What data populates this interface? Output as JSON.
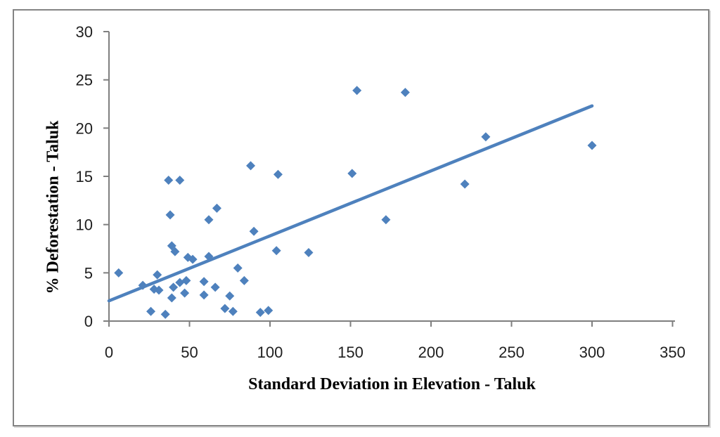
{
  "figure": {
    "background": "#ffffff",
    "border_color": "#848484"
  },
  "chart_data": {
    "type": "scatter",
    "title": "",
    "xlabel": "Standard Deviation in Elevation - Taluk",
    "ylabel": "% Deforestation - Taluk",
    "xlim": [
      0,
      350
    ],
    "ylim": [
      0,
      30
    ],
    "x_ticks": [
      0,
      50,
      100,
      150,
      200,
      250,
      300,
      350
    ],
    "y_ticks": [
      0,
      5,
      10,
      15,
      20,
      25,
      30
    ],
    "grid": false,
    "legend": false,
    "marker": "diamond",
    "marker_color": "#4e81bd",
    "axis_color": "#7f7f7f",
    "tick_label_color": "#1f1f1f",
    "points": [
      [
        6,
        5.0
      ],
      [
        21,
        3.7
      ],
      [
        26,
        1.0
      ],
      [
        28,
        3.3
      ],
      [
        30,
        4.8
      ],
      [
        31,
        3.2
      ],
      [
        35,
        0.7
      ],
      [
        37,
        14.6
      ],
      [
        38,
        11.0
      ],
      [
        39,
        2.4
      ],
      [
        39,
        7.8
      ],
      [
        40,
        3.5
      ],
      [
        41,
        7.2
      ],
      [
        44,
        4.0
      ],
      [
        44,
        14.6
      ],
      [
        47,
        2.9
      ],
      [
        48,
        4.2
      ],
      [
        49,
        6.6
      ],
      [
        52,
        6.4
      ],
      [
        59,
        2.7
      ],
      [
        59,
        4.1
      ],
      [
        62,
        6.7
      ],
      [
        62,
        10.5
      ],
      [
        66,
        3.5
      ],
      [
        67,
        11.7
      ],
      [
        72,
        1.3
      ],
      [
        75,
        2.6
      ],
      [
        77,
        1.0
      ],
      [
        80,
        5.5
      ],
      [
        84,
        4.2
      ],
      [
        88,
        16.1
      ],
      [
        90,
        9.3
      ],
      [
        94,
        0.9
      ],
      [
        99,
        1.1
      ],
      [
        104,
        7.3
      ],
      [
        105,
        15.2
      ],
      [
        124,
        7.1
      ],
      [
        151,
        15.3
      ],
      [
        154,
        23.9
      ],
      [
        172,
        10.5
      ],
      [
        184,
        23.7
      ],
      [
        221,
        14.2
      ],
      [
        234,
        19.1
      ],
      [
        300,
        18.2
      ]
    ],
    "trendline": {
      "start": [
        0,
        2.1
      ],
      "end": [
        300,
        22.3
      ],
      "color": "#4e81bd",
      "width": 4.5
    }
  }
}
